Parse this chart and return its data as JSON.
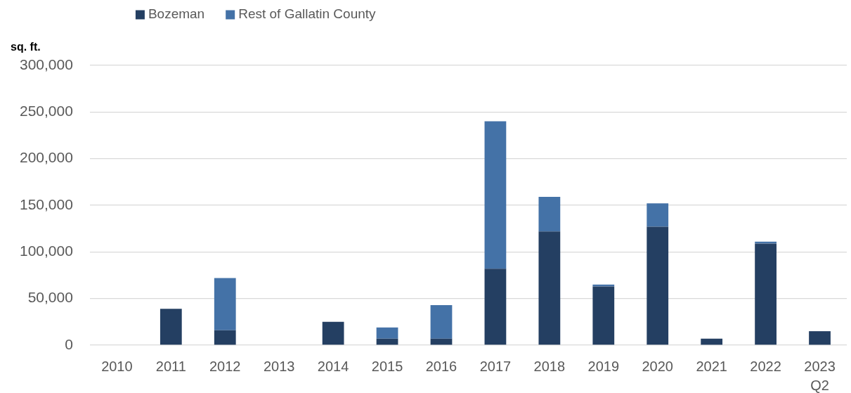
{
  "chart_data": {
    "type": "bar",
    "stacked": true,
    "ylabel": "sq. ft.",
    "categories": [
      "2010",
      "2011",
      "2012",
      "2013",
      "2014",
      "2015",
      "2016",
      "2017",
      "2018",
      "2019",
      "2020",
      "2021",
      "2022",
      "2023 Q2"
    ],
    "series": [
      {
        "name": "Bozeman",
        "color": "#243f62",
        "values": [
          0,
          39000,
          16000,
          0,
          25000,
          7000,
          7000,
          82000,
          122000,
          63000,
          127000,
          7000,
          109000,
          15000
        ]
      },
      {
        "name": "Rest of Gallatin County",
        "color": "#4472a7",
        "values": [
          0,
          0,
          56000,
          0,
          0,
          12000,
          36000,
          158000,
          37000,
          2000,
          25000,
          0,
          2000,
          0
        ]
      }
    ],
    "ylim": [
      0,
      300000
    ],
    "yticks": [
      {
        "value": 0,
        "label": "0"
      },
      {
        "value": 50000,
        "label": "50,000"
      },
      {
        "value": 100000,
        "label": "100,000"
      },
      {
        "value": 150000,
        "label": "150,000"
      },
      {
        "value": 200000,
        "label": "200,000"
      },
      {
        "value": 250000,
        "label": "250,000"
      },
      {
        "value": 300000,
        "label": "300,000"
      }
    ],
    "grid": "y",
    "legend": "top left"
  }
}
